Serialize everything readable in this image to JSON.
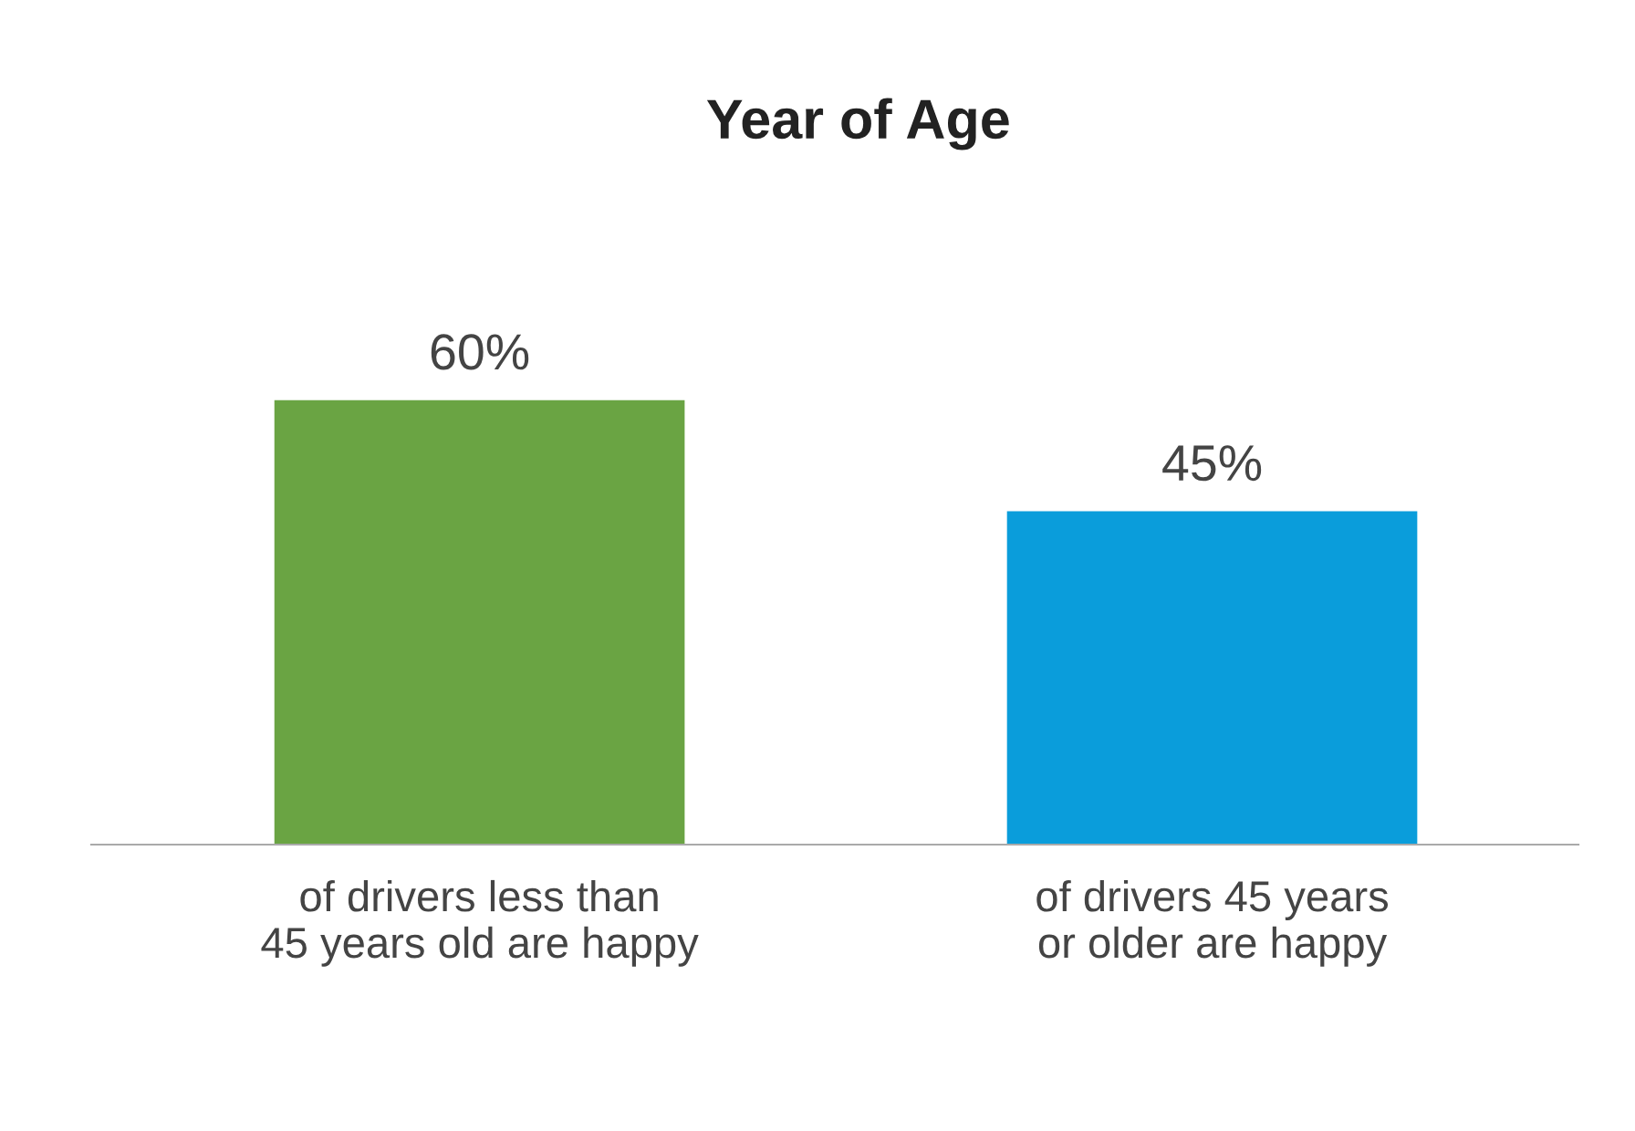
{
  "chart_data": {
    "type": "bar",
    "title": "Year of Age",
    "categories": [
      "of drivers less than\n45 years old are happy",
      "of drivers 45 years\nor older are happy"
    ],
    "values": [
      60,
      45
    ],
    "colors": [
      "#6aa443",
      "#0a9ddb"
    ],
    "value_labels": [
      "60%",
      "45%"
    ],
    "grid": false,
    "legend": false
  }
}
